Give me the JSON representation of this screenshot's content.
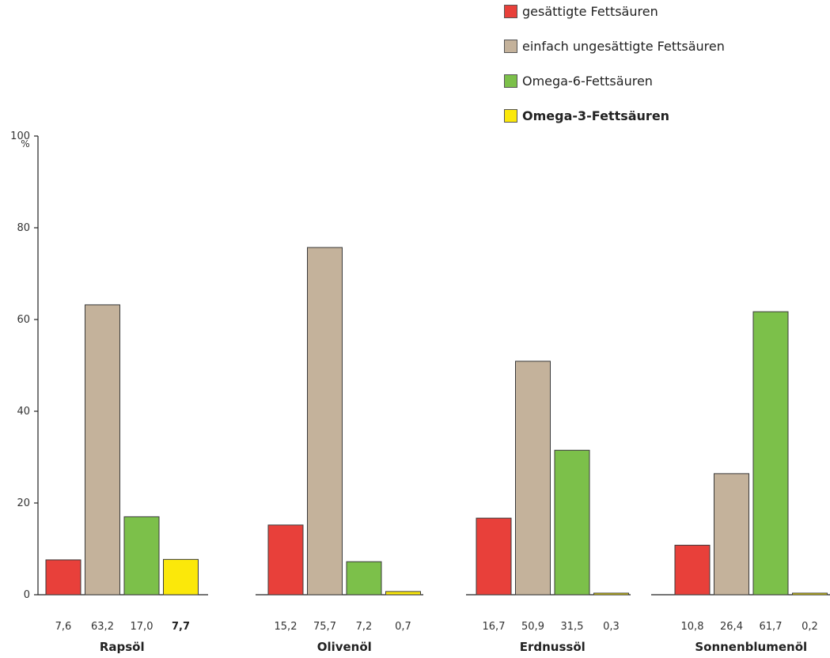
{
  "chart_data": {
    "type": "bar",
    "y_axis": {
      "unit": "%",
      "min": 0,
      "max": 100,
      "ticks": [
        0,
        20,
        40,
        60,
        80,
        100
      ]
    },
    "categories": [
      "Rapsöl",
      "Olivenöl",
      "Erdnussöl",
      "Sonnenblumenöl"
    ],
    "series": [
      {
        "name": "gesättigte Fettsäuren",
        "color": "#e8403a",
        "values": [
          7.6,
          15.2,
          16.7,
          10.8
        ],
        "labels": [
          "7,6",
          "15,2",
          "16,7",
          "10,8"
        ]
      },
      {
        "name": "einfach ungesättigte Fettsäuren",
        "color": "#c4b29b",
        "values": [
          63.2,
          75.7,
          50.9,
          26.4
        ],
        "labels": [
          "63,2",
          "75,7",
          "50,9",
          "26,4"
        ]
      },
      {
        "name": "Omega-6-Fettsäuren",
        "color": "#7cc04a",
        "values": [
          17.0,
          7.2,
          31.5,
          61.7
        ],
        "labels": [
          "17,0",
          "7,2",
          "31,5",
          "61,7"
        ]
      },
      {
        "name": "Omega-3-Fettsäuren",
        "color": "#fbe80a",
        "values": [
          7.7,
          0.7,
          0.3,
          0.2
        ],
        "labels": [
          "7,7",
          "0,7",
          "0,3",
          "0,2"
        ],
        "emphasized": true
      }
    ],
    "emphasized_value_labels": [
      [
        0,
        3
      ]
    ],
    "legend_position": "top-right",
    "grid": false
  }
}
